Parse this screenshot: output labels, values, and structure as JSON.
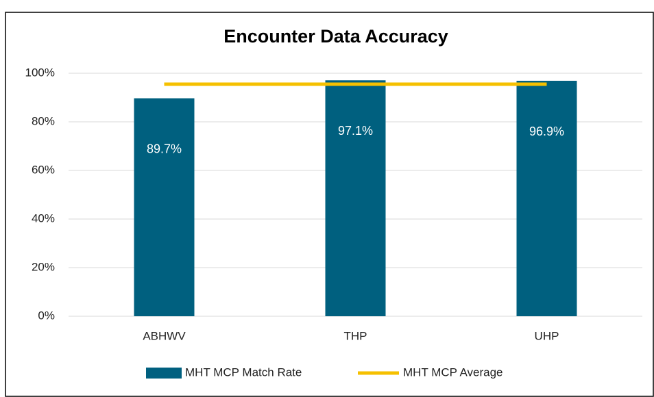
{
  "chart_data": {
    "type": "bar",
    "title": "Encounter Data Accuracy",
    "categories": [
      "ABHWV",
      "THP",
      "UHP"
    ],
    "series": [
      {
        "name": "MHT MCP Match Rate",
        "type": "bar",
        "color": "#00607f",
        "values": [
          89.7,
          97.1,
          96.9
        ],
        "value_labels": [
          "89.7%",
          "97.1%",
          "96.9%"
        ]
      },
      {
        "name": "MHT MCP Average",
        "type": "line",
        "color": "#f5c000",
        "values": [
          95.5,
          95.5,
          95.5
        ]
      }
    ],
    "ylim": [
      0,
      100
    ],
    "yticks": [
      {
        "value": 0,
        "label": "0%"
      },
      {
        "value": 20,
        "label": "20%"
      },
      {
        "value": 40,
        "label": "40%"
      },
      {
        "value": 60,
        "label": "60%"
      },
      {
        "value": 80,
        "label": "80%"
      },
      {
        "value": 100,
        "label": "100%"
      }
    ],
    "grid": true,
    "legend": "bottom"
  }
}
